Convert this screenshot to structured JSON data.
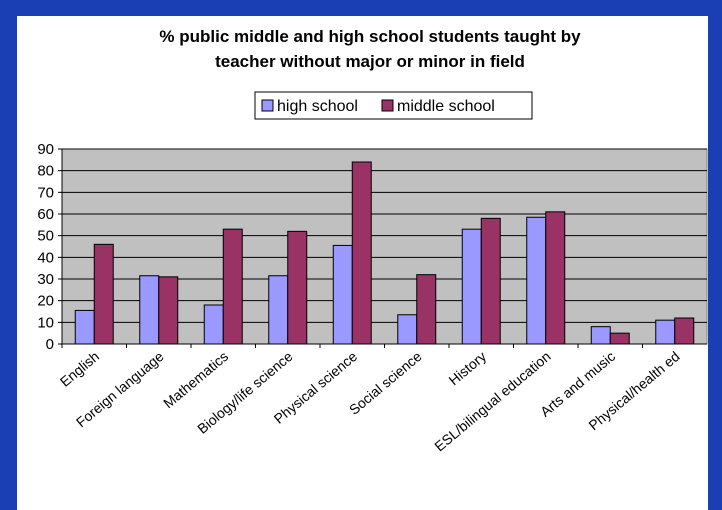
{
  "chart_data": {
    "type": "bar",
    "title_lines": [
      "% public middle and high school students taught by",
      "teacher without major or minor in field"
    ],
    "categories": [
      "English",
      "Foreign language",
      "Mathematics",
      "Biology/life science",
      "Physical science",
      "Social science",
      "History",
      "ESL/bilingual education",
      "Arts and music",
      "Physical/health ed"
    ],
    "series": [
      {
        "name": "high school",
        "color": "#9999ff",
        "values": [
          15.5,
          31.5,
          18,
          31.5,
          45.5,
          13.5,
          53,
          58.5,
          8,
          11
        ]
      },
      {
        "name": "middle school",
        "color": "#993366",
        "values": [
          46,
          31,
          53,
          52,
          84,
          32,
          58,
          61,
          5,
          12
        ]
      }
    ],
    "ylim": [
      0,
      90
    ],
    "yticks": [
      0,
      10,
      20,
      30,
      40,
      50,
      60,
      70,
      80,
      90
    ],
    "grid": true,
    "plot_background": "#c0c0c0",
    "legend_position": "top-center"
  }
}
